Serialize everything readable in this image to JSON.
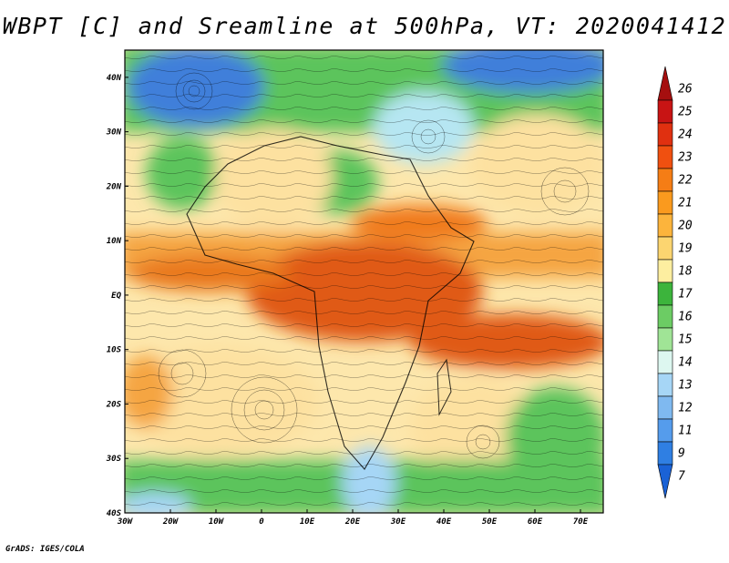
{
  "title": "WBPT [C] and Sreamline at 500hPa, VT: 2020041412",
  "footer": "GrADS: IGES/COLA",
  "axes": {
    "lat_labels": [
      "40N",
      "30N",
      "20N",
      "10N",
      "EQ",
      "10S",
      "20S",
      "30S",
      "40S"
    ],
    "lat_values": [
      40,
      30,
      20,
      10,
      0,
      -10,
      -20,
      -30,
      -40
    ],
    "lon_labels": [
      "30W",
      "20W",
      "10W",
      "0",
      "10E",
      "20E",
      "30E",
      "40E",
      "50E",
      "60E",
      "70E"
    ],
    "lon_values": [
      -30,
      -20,
      -10,
      0,
      10,
      20,
      30,
      40,
      50,
      60,
      70
    ],
    "lon_range": [
      -30,
      75
    ],
    "lat_range": [
      -40,
      45
    ]
  },
  "colorbar": {
    "labels": [
      "26",
      "25",
      "24",
      "23",
      "22",
      "21",
      "20",
      "19",
      "18",
      "17",
      "16",
      "15",
      "14",
      "13",
      "12",
      "11",
      "9",
      "7"
    ],
    "colors": [
      "#a50f0f",
      "#c81414",
      "#e03010",
      "#f05010",
      "#f57d15",
      "#fa9a1e",
      "#fcb43c",
      "#fcd570",
      "#fdeea0",
      "#3cb43c",
      "#6ccc64",
      "#a0e496",
      "#ddf7f0",
      "#a6d6f6",
      "#7fb9f0",
      "#559cec",
      "#2f7fe3",
      "#1a62d6"
    ]
  },
  "colors": {
    "warm_core": "#e05a14",
    "warm": "#f5a543",
    "mild": "#fde1a0",
    "cool_green": "#5cc45c",
    "cold_blue": "#3f7fda"
  }
}
